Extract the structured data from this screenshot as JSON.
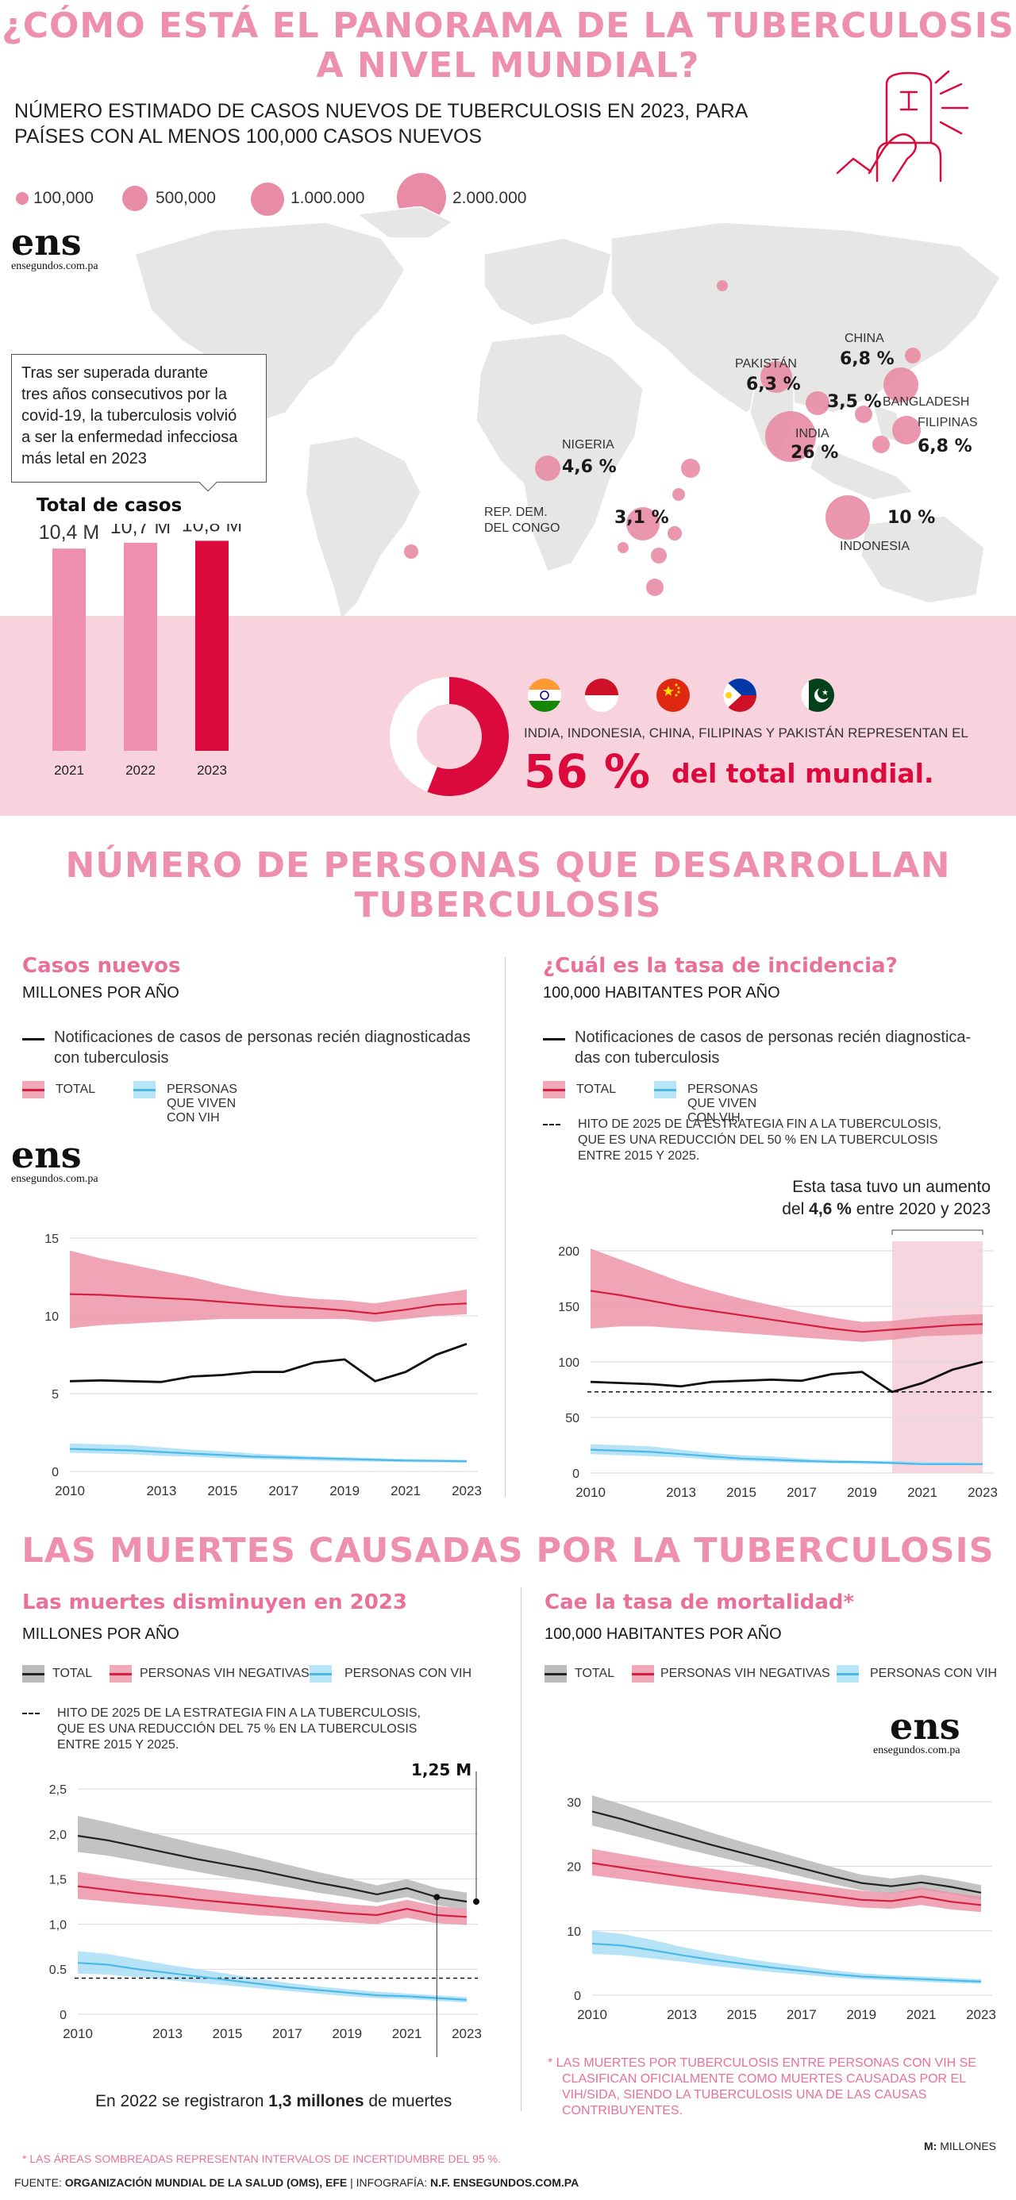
{
  "colors": {
    "pink_title": "#ee8fae",
    "red": "#dc0a3c",
    "pink_band": "#f8d2dd",
    "total_band": "#e8798f",
    "hiv_band": "#a9dff5",
    "gray_band": "#b9b9b9"
  },
  "header": {
    "title_line1": "¿CÓMO ESTÁ EL PANORAMA DE LA TUBERCULOSIS",
    "title_line2": "A NIVEL MUNDIAL?",
    "subtitle_line1": "NÚMERO ESTIMADO DE CASOS NUEVOS DE TUBERCULOSIS EN 2023, PARA",
    "subtitle_line2": "PAÍSES CON AL MENOS 100,000 CASOS NUEVOS"
  },
  "size_legend": [
    "100,000",
    "500,000",
    "1.000.000",
    "2.000.000"
  ],
  "logo": {
    "name": "ens",
    "site": "ensegundos.com.pa"
  },
  "callout": {
    "line1": "Tras ser superada durante",
    "line2": "tres años consecutivos por la",
    "line3": "covid-19, la tuberculosis volvió",
    "line4": "a ser la enfermedad infecciosa",
    "line5": "más letal en 2023"
  },
  "map": {
    "countries": [
      {
        "name": "CHINA",
        "pct": "6,8 %"
      },
      {
        "name": "PAKISTÁN",
        "pct": "6,3 %"
      },
      {
        "name": "BANGLADESH",
        "pct": "3,5 %"
      },
      {
        "name": "FILIPINAS",
        "pct": "6,8 %"
      },
      {
        "name": "INDIA",
        "pct": "26 %"
      },
      {
        "name": "INDONESIA",
        "pct": "10 %"
      },
      {
        "name": "NIGERIA",
        "pct": "4,6 %"
      },
      {
        "name_line1": "REP. DEM.",
        "name_line2": "DEL CONGO",
        "pct": "3,1 %"
      }
    ]
  },
  "total_cases": {
    "title": "Total de casos",
    "bars": [
      {
        "year": "2021",
        "label": "10,4 M",
        "value": 10.4
      },
      {
        "year": "2022",
        "label": "10,7 M",
        "value": 10.7
      },
      {
        "year": "2023",
        "label": "10,8 M",
        "value": 10.8
      }
    ]
  },
  "share": {
    "value": 56,
    "text": "INDIA, INDONESIA, CHINA, FILIPINAS Y PAKISTÁN REPRESENTAN EL",
    "big": "56 %",
    "suffix": "del total mundial.",
    "flags": [
      "india-flag",
      "indonesia-flag",
      "china-flag",
      "philippines-flag",
      "pakistan-flag"
    ]
  },
  "section2": {
    "title_line1": "NÚMERO DE PERSONAS QUE DESARROLLAN",
    "title_line2": "TUBERCULOSIS"
  },
  "section3": {
    "title": "LAS MUERTES CAUSADAS POR LA TUBERCULOSIS"
  },
  "panels": {
    "new_cases": {
      "title": "Casos nuevos",
      "unit": "MILLONES POR AÑO",
      "legend_black_line1": "Notificaciones de casos de personas recién diagnosticadas",
      "legend_black_line2": "con tuberculosis",
      "legend_total": "TOTAL",
      "legend_hiv": "PERSONAS QUE VIVEN CON VIH"
    },
    "incidence": {
      "title": "¿Cuál es la tasa de incidencia?",
      "unit": "100,000 HABITANTES POR AÑO",
      "legend_black_line1": "Notificaciones de casos de personas recién diagnostica-",
      "legend_black_line2": "das con tuberculosis",
      "legend_total": "TOTAL",
      "legend_hiv": "PERSONAS QUE VIVEN CON VIH",
      "milestone_line1": "HITO DE 2025 DE LA ESTRATEGIA FIN A LA TUBERCULOSIS,",
      "milestone_line2": "QUE ES UNA REDUCCIÓN DEL 50 % EN LA TUBERCULOSIS",
      "milestone_line3": "ENTRE 2015 Y 2025.",
      "note_line1": "Esta tasa tuvo un aumento",
      "note_pre": "del ",
      "note_bold": "4,6 %",
      "note_post": " entre 2020 y 2023"
    },
    "deaths": {
      "title": "Las muertes disminuyen en 2023",
      "unit": "MILLONES POR AÑO",
      "legend_total": "TOTAL",
      "legend_neg": "PERSONAS VIH NEGATIVAS",
      "legend_hiv": "PERSONAS CON VIH",
      "milestone_line1": "HITO DE 2025 DE LA ESTRATEGIA FIN A LA TUBERCULOSIS,",
      "milestone_line2": "QUE ES UNA REDUCCIÓN DEL 75 % EN LA TUBERCULOSIS",
      "milestone_line3": "ENTRE 2015 Y 2025.",
      "callout": "1,25 M",
      "note_pre": "En 2022 se registraron ",
      "note_bold": "1,3 millones",
      "note_post": " de muertes"
    },
    "mortality": {
      "title": "Cae la tasa de mortalidad*",
      "unit": "100,000 HABITANTES POR AÑO",
      "legend_total": "TOTAL",
      "legend_neg": "PERSONAS VIH NEGATIVAS",
      "legend_hiv": "PERSONAS CON VIH",
      "footnote_line1": "*  LAS MUERTES POR TUBERCULOSIS ENTRE PERSONAS CON VIH SE",
      "footnote_line2": "CLASIFICAN OFICIALMENTE COMO MUERTES CAUSADAS POR EL",
      "footnote_line3": "VIH/SIDA, SIENDO LA TUBERCULOSIS UNA DE LAS CAUSAS",
      "footnote_line4": "CONTRIBUYENTES."
    }
  },
  "chart_data": [
    {
      "type": "line",
      "id": "new_cases",
      "title": "Casos nuevos",
      "ylabel": "MILLONES POR AÑO",
      "x": [
        2010,
        2011,
        2012,
        2013,
        2014,
        2015,
        2016,
        2017,
        2018,
        2019,
        2020,
        2021,
        2022,
        2023
      ],
      "xticks": [
        "2010",
        "2013",
        "2015",
        "2017",
        "2019",
        "2021",
        "2023"
      ],
      "yticks": [
        "0",
        "5",
        "10",
        "15"
      ],
      "ylim": [
        0,
        15
      ],
      "series": [
        {
          "name": "TOTAL",
          "values": [
            11.4,
            11.35,
            11.25,
            11.15,
            11.05,
            10.9,
            10.75,
            10.6,
            10.5,
            10.35,
            10.15,
            10.4,
            10.7,
            10.8
          ],
          "low": [
            9.2,
            9.4,
            9.5,
            9.6,
            9.7,
            9.8,
            9.8,
            9.8,
            9.8,
            9.8,
            9.6,
            9.8,
            10.0,
            10.1
          ],
          "high": [
            14.2,
            13.7,
            13.3,
            12.9,
            12.5,
            12.0,
            11.6,
            11.3,
            11.1,
            11.0,
            10.8,
            11.1,
            11.4,
            11.7
          ]
        },
        {
          "name": "Notificaciones",
          "values": [
            5.8,
            5.85,
            5.8,
            5.75,
            6.1,
            6.2,
            6.4,
            6.4,
            7.0,
            7.2,
            5.8,
            6.4,
            7.5,
            8.2
          ]
        },
        {
          "name": "PERSONAS QUE VIVEN CON VIH",
          "values": [
            1.45,
            1.4,
            1.35,
            1.25,
            1.15,
            1.05,
            0.95,
            0.9,
            0.85,
            0.8,
            0.75,
            0.7,
            0.68,
            0.65
          ],
          "low": [
            1.2,
            1.15,
            1.1,
            1.0,
            0.95,
            0.85,
            0.8,
            0.75,
            0.7,
            0.65,
            0.62,
            0.6,
            0.58,
            0.56
          ],
          "high": [
            1.8,
            1.75,
            1.7,
            1.55,
            1.4,
            1.3,
            1.15,
            1.05,
            0.98,
            0.92,
            0.86,
            0.8,
            0.77,
            0.75
          ]
        }
      ]
    },
    {
      "type": "line",
      "id": "incidence",
      "title": "¿Cuál es la tasa de incidencia?",
      "ylabel": "100,000 HABITANTES POR AÑO",
      "x": [
        2010,
        2011,
        2012,
        2013,
        2014,
        2015,
        2016,
        2017,
        2018,
        2019,
        2020,
        2021,
        2022,
        2023
      ],
      "xticks": [
        "2010",
        "2013",
        "2015",
        "2017",
        "2019",
        "2021",
        "2023"
      ],
      "yticks": [
        "0",
        "50",
        "100",
        "150",
        "200"
      ],
      "ylim": [
        0,
        200
      ],
      "milestone": 73,
      "highlight": [
        2020,
        2023
      ],
      "series": [
        {
          "name": "TOTAL",
          "values": [
            164,
            160,
            155,
            150,
            146,
            142,
            138,
            134,
            130,
            127,
            129,
            131,
            133,
            134
          ],
          "low": [
            130,
            132,
            132,
            130,
            128,
            126,
            124,
            122,
            120,
            118,
            120,
            123,
            124,
            125
          ],
          "high": [
            202,
            192,
            182,
            172,
            164,
            157,
            151,
            145,
            140,
            136,
            137,
            140,
            142,
            143
          ]
        },
        {
          "name": "Notificaciones",
          "values": [
            82,
            81,
            80,
            78,
            82,
            83,
            84,
            83,
            89,
            91,
            73,
            81,
            93,
            100
          ]
        },
        {
          "name": "PERSONAS QUE VIVEN CON VIH",
          "values": [
            21,
            20,
            19,
            17,
            15,
            13,
            12,
            11,
            10,
            10,
            9,
            8,
            8,
            8
          ],
          "low": [
            17,
            16,
            15,
            14,
            12,
            11,
            10,
            9,
            9,
            8,
            8,
            7,
            7,
            7
          ],
          "high": [
            26,
            25,
            24,
            21,
            18,
            16,
            15,
            13,
            12,
            11,
            11,
            10,
            10,
            9
          ]
        }
      ]
    },
    {
      "type": "line",
      "id": "deaths",
      "title": "Las muertes disminuyen en 2023",
      "ylabel": "MILLONES POR AÑO",
      "x": [
        2010,
        2011,
        2012,
        2013,
        2014,
        2015,
        2016,
        2017,
        2018,
        2019,
        2020,
        2021,
        2022,
        2023
      ],
      "xticks": [
        "2010",
        "2013",
        "2015",
        "2017",
        "2019",
        "2021",
        "2023"
      ],
      "yticks": [
        "0",
        "0.5",
        "1,0",
        "1,5",
        "2,0",
        "2,5"
      ],
      "ylim": [
        0,
        2.5
      ],
      "milestone": 0.4,
      "series": [
        {
          "name": "TOTAL",
          "values": [
            1.98,
            1.93,
            1.86,
            1.79,
            1.72,
            1.66,
            1.6,
            1.53,
            1.46,
            1.4,
            1.33,
            1.4,
            1.3,
            1.25
          ],
          "low": [
            1.8,
            1.76,
            1.7,
            1.64,
            1.58,
            1.52,
            1.47,
            1.41,
            1.35,
            1.3,
            1.24,
            1.3,
            1.21,
            1.16
          ],
          "high": [
            2.2,
            2.13,
            2.05,
            1.97,
            1.89,
            1.82,
            1.74,
            1.66,
            1.58,
            1.51,
            1.43,
            1.5,
            1.4,
            1.35
          ]
        },
        {
          "name": "PERSONAS VIH NEGATIVAS",
          "values": [
            1.42,
            1.38,
            1.34,
            1.31,
            1.27,
            1.24,
            1.21,
            1.18,
            1.15,
            1.12,
            1.1,
            1.17,
            1.1,
            1.08
          ],
          "low": [
            1.28,
            1.25,
            1.22,
            1.19,
            1.16,
            1.13,
            1.1,
            1.08,
            1.05,
            1.02,
            1.0,
            1.07,
            1.01,
            0.99
          ],
          "high": [
            1.58,
            1.53,
            1.48,
            1.44,
            1.4,
            1.36,
            1.32,
            1.29,
            1.26,
            1.22,
            1.2,
            1.27,
            1.2,
            1.17
          ]
        },
        {
          "name": "PERSONAS CON VIH",
          "values": [
            0.57,
            0.55,
            0.5,
            0.46,
            0.42,
            0.38,
            0.34,
            0.3,
            0.27,
            0.24,
            0.21,
            0.2,
            0.18,
            0.16
          ],
          "low": [
            0.45,
            0.44,
            0.41,
            0.38,
            0.35,
            0.32,
            0.29,
            0.26,
            0.23,
            0.2,
            0.18,
            0.17,
            0.15,
            0.13
          ],
          "high": [
            0.7,
            0.67,
            0.61,
            0.55,
            0.5,
            0.45,
            0.4,
            0.35,
            0.31,
            0.28,
            0.25,
            0.23,
            0.21,
            0.19
          ]
        }
      ]
    },
    {
      "type": "line",
      "id": "mortality",
      "title": "Cae la tasa de mortalidad*",
      "ylabel": "100,000 HABITANTES POR AÑO",
      "x": [
        2010,
        2011,
        2012,
        2013,
        2014,
        2015,
        2016,
        2017,
        2018,
        2019,
        2020,
        2021,
        2022,
        2023
      ],
      "xticks": [
        "2010",
        "2013",
        "2015",
        "2017",
        "2019",
        "2021",
        "2023"
      ],
      "yticks": [
        "0",
        "10",
        "20",
        "30"
      ],
      "ylim": [
        0,
        32
      ],
      "series": [
        {
          "name": "TOTAL",
          "values": [
            28.5,
            27.3,
            25.9,
            24.6,
            23.3,
            22.1,
            20.9,
            19.7,
            18.5,
            17.4,
            16.9,
            17.5,
            16.8,
            15.9
          ],
          "low": [
            26.3,
            25.2,
            24.0,
            22.8,
            21.7,
            20.6,
            19.5,
            18.4,
            17.3,
            16.3,
            15.8,
            16.4,
            15.7,
            14.8
          ],
          "high": [
            31.0,
            29.6,
            28.1,
            26.7,
            25.2,
            23.8,
            22.5,
            21.2,
            19.9,
            18.7,
            18.1,
            18.7,
            18.0,
            17.1
          ]
        },
        {
          "name": "PERSONAS VIH NEGATIVAS",
          "values": [
            20.5,
            19.8,
            19.1,
            18.4,
            17.8,
            17.2,
            16.6,
            16.0,
            15.4,
            14.8,
            14.6,
            15.3,
            14.5,
            14.0
          ],
          "low": [
            18.6,
            18.0,
            17.4,
            16.8,
            16.2,
            15.7,
            15.1,
            14.6,
            14.1,
            13.6,
            13.4,
            14.0,
            13.3,
            12.9
          ],
          "high": [
            22.7,
            21.9,
            21.1,
            20.3,
            19.6,
            18.9,
            18.2,
            17.5,
            16.8,
            16.2,
            15.9,
            16.7,
            15.9,
            15.3
          ]
        },
        {
          "name": "PERSONAS CON VIH",
          "values": [
            8.0,
            7.7,
            7.0,
            6.2,
            5.5,
            4.9,
            4.3,
            3.8,
            3.3,
            2.9,
            2.7,
            2.5,
            2.3,
            2.1
          ],
          "low": [
            6.4,
            6.2,
            5.7,
            5.2,
            4.6,
            4.1,
            3.6,
            3.2,
            2.8,
            2.5,
            2.3,
            2.1,
            1.9,
            1.8
          ],
          "high": [
            10.0,
            9.5,
            8.6,
            7.5,
            6.6,
            5.8,
            5.1,
            4.5,
            3.9,
            3.4,
            3.1,
            2.9,
            2.7,
            2.5
          ]
        }
      ]
    }
  ],
  "footer": {
    "uncertainty_note": "*  LAS ÁREAS SOMBREADAS REPRESENTAN INTERVALOS DE INCERTIDUMBRE DEL 95 %.",
    "source_pre": "FUENTE: ",
    "source_bold": "ORGANIZACIÓN MUNDIAL DE LA SALUD (OMS), EFE",
    "source_mid": " | INFOGRAFÍA: ",
    "source_bold2": "N.F. ENSEGUNDOS.COM.PA",
    "millones_bold": "M:",
    "millones": " MILLONES"
  }
}
